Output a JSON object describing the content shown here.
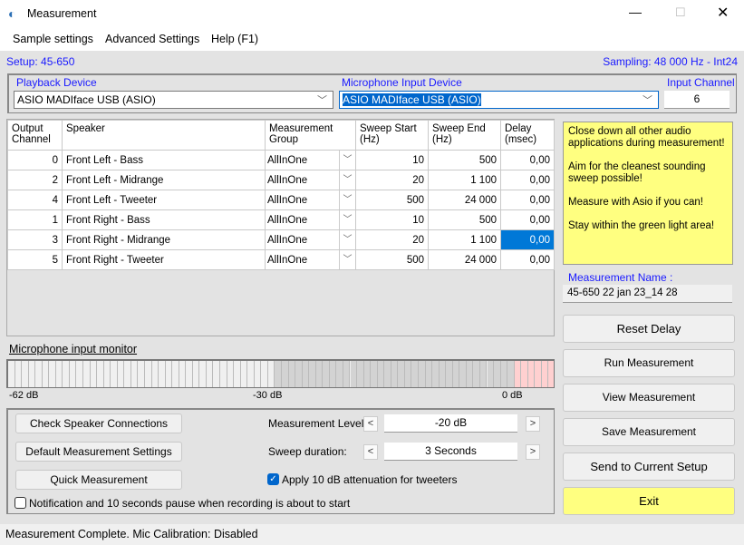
{
  "window": {
    "title": "Measurement",
    "icon": "speaker-wave-icon"
  },
  "menu": [
    "Sample settings",
    "Advanced Settings",
    "Help (F1)"
  ],
  "setup": "Setup: 45-650",
  "sampling": "Sampling: 48 000 Hz - Int24",
  "devices": {
    "playback_label": "Playback Device",
    "playback_value": "ASIO MADIface USB (ASIO)",
    "mic_label": "Microphone Input Device",
    "mic_value": "ASIO MADIface USB (ASIO)",
    "channel_label": "Input Channel",
    "channel_value": "6"
  },
  "table": {
    "headers": [
      "Output Channel",
      "Speaker",
      "Measurement Group",
      "Sweep Start (Hz)",
      "Sweep End (Hz)",
      "Delay (msec)"
    ],
    "rows": [
      [
        "0",
        "Front Left - Bass",
        "AllInOne",
        "10",
        "500",
        "0,00"
      ],
      [
        "2",
        "Front Left - Midrange",
        "AllInOne",
        "20",
        "1 100",
        "0,00"
      ],
      [
        "4",
        "Front Left - Tweeter",
        "AllInOne",
        "500",
        "24 000",
        "0,00"
      ],
      [
        "1",
        "Front Right - Bass",
        "AllInOne",
        "10",
        "500",
        "0,00"
      ],
      [
        "3",
        "Front Right - Midrange",
        "AllInOne",
        "20",
        "1 100",
        "0,00"
      ],
      [
        "5",
        "Front Right - Tweeter",
        "AllInOne",
        "500",
        "24 000",
        "0,00"
      ]
    ],
    "selected_row": 4
  },
  "monitor": {
    "title": "Microphone input monitor",
    "labels": [
      "-62 dB",
      "-30 dB",
      "0 dB"
    ]
  },
  "controls": {
    "check": "Check Speaker Connections",
    "defaults": "Default Measurement Settings",
    "quick": "Quick Measurement",
    "level_label": "Measurement Level:",
    "level_value": "-20 dB",
    "sweep_label": "Sweep duration:",
    "sweep_value": "3 Seconds",
    "attenuation": "Apply 10 dB attenuation for tweeters",
    "attenuation_checked": true,
    "notification": "Notification and 10 seconds pause when recording is about to start",
    "notification_checked": false
  },
  "info": {
    "text": "Close down all other audio applications during measurement!\n\nAim for the cleanest sounding sweep possible!\n\nMeasure with Asio if you can!\n\nStay within the green light area!",
    "name_label": "Measurement Name :",
    "name_value": "45-650 22 jan 23_14 28"
  },
  "buttons": {
    "reset": "Reset Delay",
    "run": "Run Measurement",
    "view": "View Measurement",
    "save": "Save Measurement",
    "send": "Send to Current Setup",
    "exit": "Exit"
  },
  "status": "Measurement Complete.  Mic Calibration:  Disabled",
  "colors": {
    "accent": "#0066cc",
    "label_blue": "#1a1aff",
    "info_bg": "#ffff80",
    "exit_bg": "#ffff80"
  }
}
